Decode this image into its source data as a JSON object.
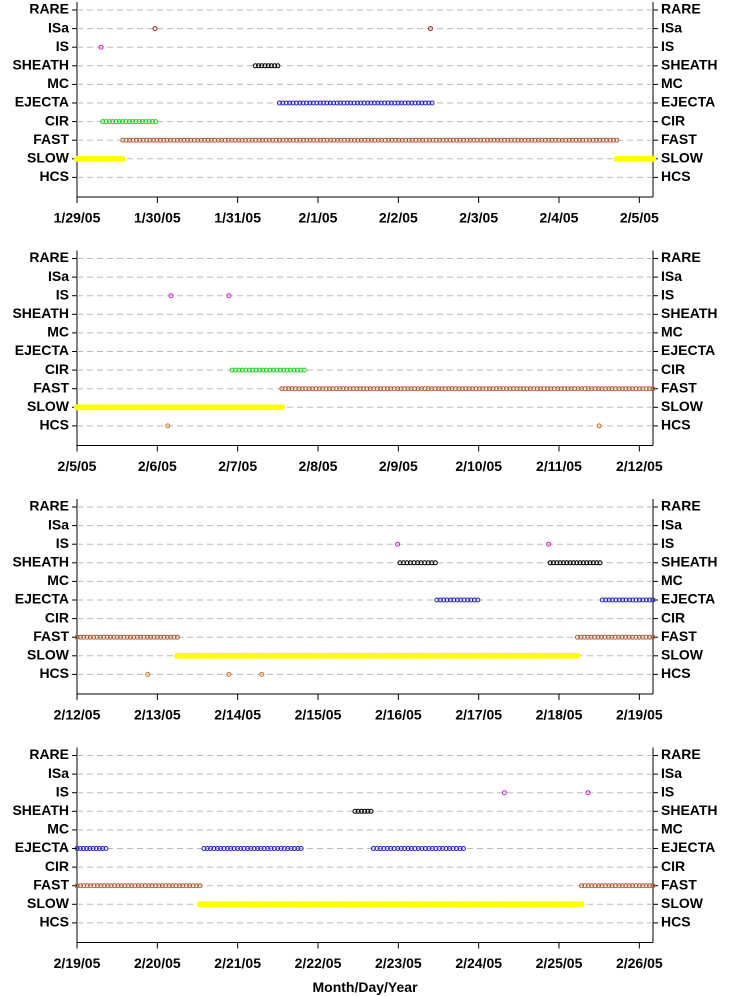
{
  "chart_data": [
    {
      "type": "interval-dot",
      "xlim": [
        0,
        7.17
      ],
      "xticks": [
        {
          "value": 0,
          "label": "1/29/05"
        },
        {
          "value": 1,
          "label": "1/30/05"
        },
        {
          "value": 2,
          "label": "1/31/05"
        },
        {
          "value": 3,
          "label": "2/1/05"
        },
        {
          "value": 4,
          "label": "2/2/05"
        },
        {
          "value": 5,
          "label": "2/3/05"
        },
        {
          "value": 6,
          "label": "2/4/05"
        },
        {
          "value": 7,
          "label": "2/5/05"
        }
      ],
      "grid": true,
      "series": [
        {
          "name": "RARE",
          "color": "#000000",
          "intervals": []
        },
        {
          "name": "ISa",
          "color": "#a02020",
          "intervals": [
            [
              0.97,
              0.97
            ],
            [
              4.4,
              4.4
            ]
          ]
        },
        {
          "name": "IS",
          "color": "#d020d0",
          "intervals": [
            [
              0.3,
              0.3
            ]
          ]
        },
        {
          "name": "SHEATH",
          "color": "#000000",
          "intervals": [
            [
              2.22,
              2.5
            ]
          ]
        },
        {
          "name": "MC",
          "color": "#000000",
          "intervals": []
        },
        {
          "name": "EJECTA",
          "color": "#2020c0",
          "intervals": [
            [
              2.52,
              4.42
            ]
          ]
        },
        {
          "name": "CIR",
          "color": "#20d020",
          "intervals": [
            [
              0.32,
              0.98
            ]
          ]
        },
        {
          "name": "FAST",
          "color": "#b05a30",
          "intervals": [
            [
              0.57,
              6.72
            ]
          ]
        },
        {
          "name": "SLOW",
          "color": "#ffff00",
          "intervals": [
            [
              0,
              0.57
            ],
            [
              6.72,
              7.17
            ]
          ]
        },
        {
          "name": "HCS",
          "color": "#d07020",
          "intervals": []
        }
      ]
    },
    {
      "type": "interval-dot",
      "xlim": [
        7,
        14.17
      ],
      "xticks": [
        {
          "value": 7,
          "label": "2/5/05"
        },
        {
          "value": 8,
          "label": "2/6/05"
        },
        {
          "value": 9,
          "label": "2/7/05"
        },
        {
          "value": 10,
          "label": "2/8/05"
        },
        {
          "value": 11,
          "label": "2/9/05"
        },
        {
          "value": 12,
          "label": "2/10/05"
        },
        {
          "value": 13,
          "label": "2/11/05"
        },
        {
          "value": 14,
          "label": "2/12/05"
        }
      ],
      "grid": true,
      "series": [
        {
          "name": "RARE",
          "color": "#000000",
          "intervals": []
        },
        {
          "name": "ISa",
          "color": "#a02020",
          "intervals": []
        },
        {
          "name": "IS",
          "color": "#d020d0",
          "intervals": [
            [
              8.17,
              8.17
            ],
            [
              8.89,
              8.89
            ]
          ]
        },
        {
          "name": "SHEATH",
          "color": "#000000",
          "intervals": []
        },
        {
          "name": "MC",
          "color": "#000000",
          "intervals": []
        },
        {
          "name": "EJECTA",
          "color": "#2020c0",
          "intervals": []
        },
        {
          "name": "CIR",
          "color": "#20d020",
          "intervals": [
            [
              8.93,
              9.83
            ]
          ]
        },
        {
          "name": "FAST",
          "color": "#b05a30",
          "intervals": [
            [
              9.55,
              14.17
            ]
          ]
        },
        {
          "name": "SLOW",
          "color": "#ffff00",
          "intervals": [
            [
              7,
              9.55
            ]
          ]
        },
        {
          "name": "HCS",
          "color": "#d07020",
          "intervals": [
            [
              8.13,
              8.13
            ],
            [
              13.5,
              13.5
            ]
          ]
        }
      ]
    },
    {
      "type": "interval-dot",
      "xlim": [
        14,
        21.17
      ],
      "xticks": [
        {
          "value": 14,
          "label": "2/12/05"
        },
        {
          "value": 15,
          "label": "2/13/05"
        },
        {
          "value": 16,
          "label": "2/14/05"
        },
        {
          "value": 17,
          "label": "2/15/05"
        },
        {
          "value": 18,
          "label": "2/16/05"
        },
        {
          "value": 19,
          "label": "2/17/05"
        },
        {
          "value": 20,
          "label": "2/18/05"
        },
        {
          "value": 21,
          "label": "2/19/05"
        }
      ],
      "grid": true,
      "series": [
        {
          "name": "RARE",
          "color": "#000000",
          "intervals": []
        },
        {
          "name": "ISa",
          "color": "#a02020",
          "intervals": []
        },
        {
          "name": "IS",
          "color": "#d020d0",
          "intervals": [
            [
              17.99,
              17.99
            ],
            [
              19.87,
              19.87
            ]
          ]
        },
        {
          "name": "SHEATH",
          "color": "#000000",
          "intervals": [
            [
              18.02,
              18.46
            ],
            [
              19.89,
              20.51
            ]
          ]
        },
        {
          "name": "MC",
          "color": "#000000",
          "intervals": []
        },
        {
          "name": "EJECTA",
          "color": "#2020c0",
          "intervals": [
            [
              18.48,
              18.99
            ],
            [
              20.54,
              21.17
            ]
          ]
        },
        {
          "name": "CIR",
          "color": "#20d020",
          "intervals": []
        },
        {
          "name": "FAST",
          "color": "#b05a30",
          "intervals": [
            [
              14,
              15.25
            ],
            [
              20.23,
              21.17
            ]
          ]
        },
        {
          "name": "SLOW",
          "color": "#ffff00",
          "intervals": [
            [
              15.25,
              20.23
            ]
          ]
        },
        {
          "name": "HCS",
          "color": "#d07020",
          "intervals": [
            [
              14.88,
              14.88
            ],
            [
              15.89,
              15.89
            ],
            [
              16.3,
              16.3
            ]
          ]
        }
      ]
    },
    {
      "type": "interval-dot",
      "xlabel": "Month/Day/Year",
      "xlim": [
        21,
        28.17
      ],
      "xticks": [
        {
          "value": 21,
          "label": "2/19/05"
        },
        {
          "value": 22,
          "label": "2/20/05"
        },
        {
          "value": 23,
          "label": "2/21/05"
        },
        {
          "value": 24,
          "label": "2/22/05"
        },
        {
          "value": 25,
          "label": "2/23/05"
        },
        {
          "value": 26,
          "label": "2/24/05"
        },
        {
          "value": 27,
          "label": "2/25/05"
        },
        {
          "value": 28,
          "label": "2/26/05"
        }
      ],
      "grid": true,
      "series": [
        {
          "name": "RARE",
          "color": "#000000",
          "intervals": []
        },
        {
          "name": "ISa",
          "color": "#a02020",
          "intervals": []
        },
        {
          "name": "IS",
          "color": "#d020d0",
          "intervals": [
            [
              26.32,
              26.32
            ],
            [
              27.36,
              27.36
            ]
          ]
        },
        {
          "name": "SHEATH",
          "color": "#000000",
          "intervals": [
            [
              24.46,
              24.66
            ]
          ]
        },
        {
          "name": "MC",
          "color": "#000000",
          "intervals": []
        },
        {
          "name": "EJECTA",
          "color": "#2020c0",
          "intervals": [
            [
              21,
              21.36
            ],
            [
              22.58,
              23.79
            ],
            [
              24.69,
              25.81
            ]
          ]
        },
        {
          "name": "CIR",
          "color": "#20d020",
          "intervals": []
        },
        {
          "name": "FAST",
          "color": "#b05a30",
          "intervals": [
            [
              21,
              22.53
            ],
            [
              27.28,
              28.17
            ]
          ]
        },
        {
          "name": "SLOW",
          "color": "#ffff00",
          "intervals": [
            [
              22.53,
              27.28
            ]
          ]
        },
        {
          "name": "HCS",
          "color": "#d07020",
          "intervals": []
        }
      ]
    }
  ]
}
